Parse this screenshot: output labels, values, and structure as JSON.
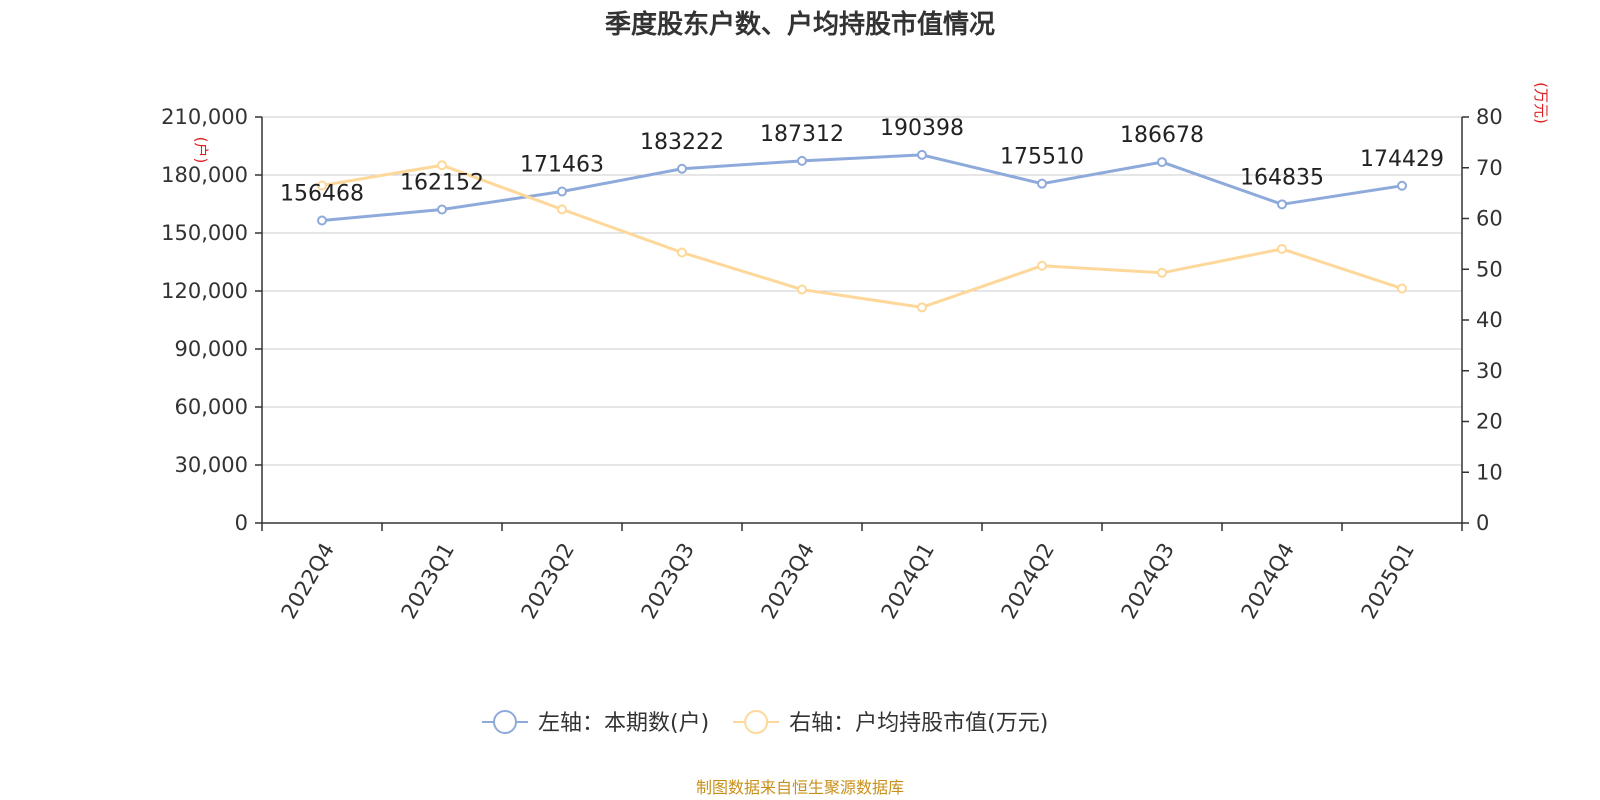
{
  "chart_data": {
    "type": "line",
    "title": "季度股东户数、户均持股市值情况",
    "categories": [
      "2022Q4",
      "2023Q1",
      "2023Q2",
      "2023Q3",
      "2023Q4",
      "2024Q1",
      "2024Q2",
      "2024Q3",
      "2024Q4",
      "2025Q1"
    ],
    "left_axis": {
      "unit": "(户)",
      "ylim": [
        0,
        210000
      ],
      "ticks": [
        "0",
        "30,000",
        "60,000",
        "90,000",
        "120,000",
        "150,000",
        "180,000",
        "210,000"
      ],
      "tick_values": [
        0,
        30000,
        60000,
        90000,
        120000,
        150000,
        180000,
        210000
      ]
    },
    "right_axis": {
      "unit": "(万元)",
      "ylim": [
        0,
        80
      ],
      "ticks": [
        "0",
        "10",
        "20",
        "30",
        "40",
        "50",
        "60",
        "70",
        "80"
      ],
      "tick_values": [
        0,
        10,
        20,
        30,
        40,
        50,
        60,
        70,
        80
      ]
    },
    "series": [
      {
        "name": "左轴：本期数(户)",
        "axis": "left",
        "color": "#8eaadb",
        "values": [
          156468,
          162152,
          171463,
          183222,
          187312,
          190398,
          175510,
          186678,
          164835,
          174429
        ],
        "labels": [
          "156468",
          "162152",
          "171463",
          "183222",
          "187312",
          "190398",
          "175510",
          "186678",
          "164835",
          "174429"
        ]
      },
      {
        "name": "右轴：户均持股市值(万元)",
        "axis": "right",
        "color": "#fdd89a",
        "values": [
          66.5,
          70.5,
          61.8,
          53.3,
          46.0,
          42.5,
          50.7,
          49.3,
          54.0,
          46.2
        ]
      }
    ],
    "grid": true,
    "legend_position": "bottom-center"
  },
  "source": "制图数据来自恒生聚源数据库"
}
